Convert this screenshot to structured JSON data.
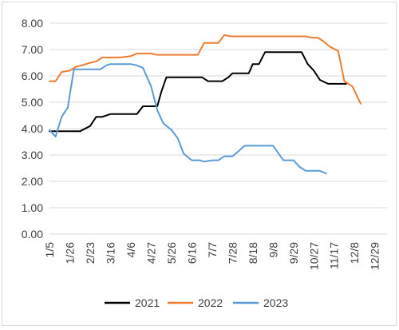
{
  "chart_data": {
    "type": "line",
    "title": "",
    "xlabel": "",
    "ylabel": "",
    "ylim": [
      0,
      8
    ],
    "y_ticks": [
      "0.00",
      "1.00",
      "2.00",
      "3.00",
      "4.00",
      "5.00",
      "6.00",
      "7.00",
      "8.00"
    ],
    "x_ticks": [
      "1/5",
      "1/26",
      "2/23",
      "3/16",
      "4/6",
      "4/27",
      "5/26",
      "6/16",
      "7/7",
      "7/28",
      "8/18",
      "9/8",
      "9/29",
      "10/27",
      "11/17",
      "12/8",
      "12/29"
    ],
    "x_range": [
      0,
      16.6
    ],
    "grid": "horizontal",
    "legend_position": "bottom",
    "series": [
      {
        "name": "2021",
        "color": "#000000",
        "points": [
          [
            0,
            3.9
          ],
          [
            1,
            3.9
          ],
          [
            1.5,
            3.9
          ],
          [
            2,
            4.1
          ],
          [
            2.3,
            4.45
          ],
          [
            2.6,
            4.45
          ],
          [
            3,
            4.55
          ],
          [
            3.5,
            4.55
          ],
          [
            4,
            4.55
          ],
          [
            4.3,
            4.55
          ],
          [
            4.6,
            4.85
          ],
          [
            5,
            4.85
          ],
          [
            5.3,
            4.85
          ],
          [
            5.5,
            5.4
          ],
          [
            5.75,
            5.95
          ],
          [
            6,
            5.95
          ],
          [
            7,
            5.95
          ],
          [
            7.5,
            5.95
          ],
          [
            7.8,
            5.8
          ],
          [
            8.5,
            5.8
          ],
          [
            8.8,
            5.95
          ],
          [
            9,
            6.1
          ],
          [
            9.8,
            6.1
          ],
          [
            10,
            6.45
          ],
          [
            10.3,
            6.45
          ],
          [
            10.6,
            6.9
          ],
          [
            11,
            6.9
          ],
          [
            12,
            6.9
          ],
          [
            12.4,
            6.9
          ],
          [
            12.7,
            6.45
          ],
          [
            13,
            6.2
          ],
          [
            13.3,
            5.85
          ],
          [
            13.7,
            5.7
          ],
          [
            14,
            5.7
          ],
          [
            14.6,
            5.7
          ]
        ]
      },
      {
        "name": "2022",
        "color": "#ed7d31",
        "points": [
          [
            0,
            5.8
          ],
          [
            0.3,
            5.8
          ],
          [
            0.6,
            6.15
          ],
          [
            1,
            6.2
          ],
          [
            1.3,
            6.35
          ],
          [
            1.6,
            6.4
          ],
          [
            2,
            6.5
          ],
          [
            2.3,
            6.55
          ],
          [
            2.6,
            6.7
          ],
          [
            3,
            6.7
          ],
          [
            3.5,
            6.7
          ],
          [
            4,
            6.75
          ],
          [
            4.3,
            6.85
          ],
          [
            4.7,
            6.85
          ],
          [
            5,
            6.85
          ],
          [
            5.3,
            6.8
          ],
          [
            6,
            6.8
          ],
          [
            7,
            6.8
          ],
          [
            7.3,
            6.8
          ],
          [
            7.6,
            7.25
          ],
          [
            8,
            7.25
          ],
          [
            8.3,
            7.25
          ],
          [
            8.6,
            7.55
          ],
          [
            8.9,
            7.5
          ],
          [
            9.5,
            7.5
          ],
          [
            10.5,
            7.5
          ],
          [
            11,
            7.5
          ],
          [
            12,
            7.5
          ],
          [
            12.6,
            7.5
          ],
          [
            12.9,
            7.45
          ],
          [
            13.2,
            7.45
          ],
          [
            13.5,
            7.3
          ],
          [
            13.8,
            7.1
          ],
          [
            14.2,
            6.95
          ],
          [
            14.5,
            5.8
          ],
          [
            14.9,
            5.6
          ],
          [
            15.3,
            4.95
          ]
        ]
      },
      {
        "name": "2023",
        "color": "#5b9bd5",
        "points": [
          [
            0,
            3.95
          ],
          [
            0.3,
            3.7
          ],
          [
            0.6,
            4.45
          ],
          [
            0.9,
            4.8
          ],
          [
            1.2,
            6.25
          ],
          [
            1.5,
            6.25
          ],
          [
            2,
            6.25
          ],
          [
            2.5,
            6.25
          ],
          [
            2.8,
            6.4
          ],
          [
            3,
            6.45
          ],
          [
            3.5,
            6.45
          ],
          [
            4,
            6.45
          ],
          [
            4.3,
            6.4
          ],
          [
            4.6,
            6.3
          ],
          [
            5,
            5.6
          ],
          [
            5.3,
            4.7
          ],
          [
            5.6,
            4.2
          ],
          [
            6,
            3.95
          ],
          [
            6.3,
            3.65
          ],
          [
            6.6,
            3.05
          ],
          [
            7,
            2.8
          ],
          [
            7.4,
            2.8
          ],
          [
            7.6,
            2.75
          ],
          [
            8,
            2.8
          ],
          [
            8.3,
            2.8
          ],
          [
            8.6,
            2.95
          ],
          [
            9,
            2.95
          ],
          [
            9.3,
            3.15
          ],
          [
            9.6,
            3.35
          ],
          [
            10,
            3.35
          ],
          [
            10.5,
            3.35
          ],
          [
            11,
            3.35
          ],
          [
            11.5,
            2.8
          ],
          [
            12,
            2.8
          ],
          [
            12.3,
            2.55
          ],
          [
            12.6,
            2.4
          ],
          [
            13,
            2.4
          ],
          [
            13.3,
            2.4
          ],
          [
            13.6,
            2.3
          ]
        ]
      }
    ]
  }
}
